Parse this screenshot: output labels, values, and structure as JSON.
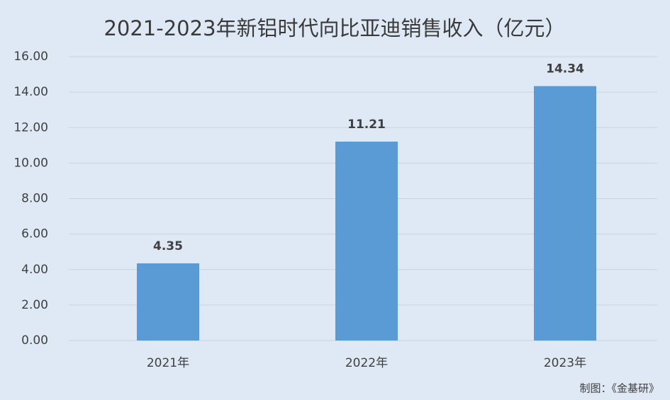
{
  "chart_data": {
    "type": "bar",
    "title": "2021-2023年新铝时代向比亚迪销售收入（亿元）",
    "categories": [
      "2021年",
      "2022年",
      "2023年"
    ],
    "values": [
      4.35,
      11.21,
      14.34
    ],
    "color": "#5b9bd5",
    "ylim": [
      0,
      16
    ],
    "yticks": [
      {
        "value": 0,
        "label": "0.00"
      },
      {
        "value": 2,
        "label": "2.00"
      },
      {
        "value": 4,
        "label": "4.00"
      },
      {
        "value": 6,
        "label": "6.00"
      },
      {
        "value": 8,
        "label": "8.00"
      },
      {
        "value": 10,
        "label": "10.00"
      },
      {
        "value": 12,
        "label": "12.00"
      },
      {
        "value": 14,
        "label": "14.00"
      },
      {
        "value": 16,
        "label": "16.00"
      }
    ],
    "grid": true,
    "source": "制图：《金基研》"
  }
}
